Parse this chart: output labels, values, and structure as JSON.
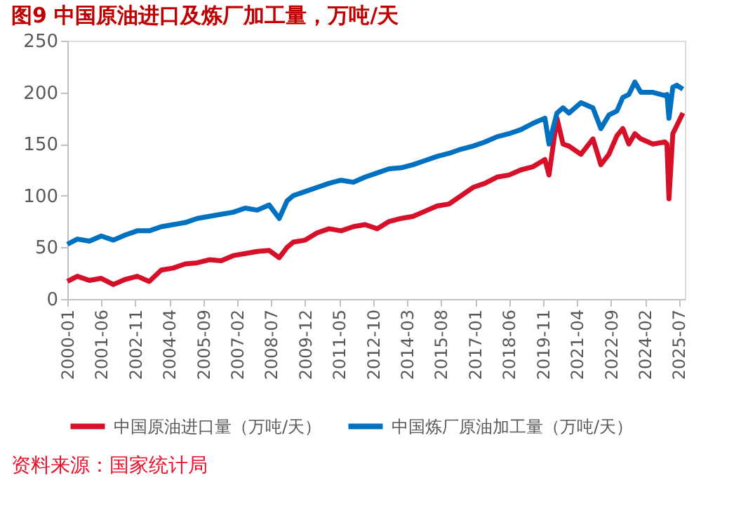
{
  "chart_data": {
    "type": "line",
    "title": "图9  中国原油进口及炼厂加工量，万吨/天",
    "x": [
      "2000-01",
      "2000-06",
      "2000-12",
      "2001-06",
      "2001-12",
      "2002-06",
      "2002-12",
      "2003-06",
      "2003-12",
      "2004-06",
      "2004-12",
      "2005-06",
      "2005-12",
      "2006-06",
      "2006-12",
      "2007-06",
      "2007-12",
      "2008-06",
      "2008-11",
      "2009-03",
      "2009-06",
      "2009-12",
      "2010-06",
      "2010-12",
      "2011-06",
      "2011-12",
      "2012-06",
      "2012-12",
      "2013-06",
      "2013-12",
      "2014-06",
      "2014-12",
      "2015-06",
      "2015-12",
      "2016-06",
      "2016-12",
      "2017-06",
      "2017-12",
      "2018-06",
      "2018-12",
      "2019-06",
      "2019-12",
      "2020-02",
      "2020-06",
      "2020-09",
      "2020-12",
      "2021-06",
      "2021-12",
      "2022-04",
      "2022-08",
      "2022-12",
      "2023-03",
      "2023-06",
      "2023-09",
      "2023-12",
      "2024-06",
      "2024-12",
      "2025-01",
      "2025-02",
      "2025-04",
      "2025-06",
      "2025-09"
    ],
    "series": [
      {
        "name": "中国原油进口量（万吨/天）",
        "color": "#d7102a",
        "values": [
          17,
          22,
          18,
          20,
          14,
          19,
          22,
          17,
          28,
          30,
          34,
          35,
          38,
          37,
          42,
          44,
          46,
          47,
          40,
          50,
          55,
          57,
          64,
          68,
          66,
          70,
          72,
          68,
          75,
          78,
          80,
          85,
          90,
          92,
          100,
          108,
          112,
          118,
          120,
          125,
          128,
          135,
          120,
          175,
          150,
          148,
          140,
          155,
          130,
          140,
          158,
          165,
          150,
          160,
          155,
          150,
          152,
          150,
          97,
          160,
          168,
          180
        ]
      },
      {
        "name": "中国炼厂原油加工量（万吨/天）",
        "color": "#0070c0",
        "values": [
          53,
          58,
          56,
          61,
          57,
          62,
          66,
          66,
          70,
          72,
          74,
          78,
          80,
          82,
          84,
          88,
          86,
          91,
          78,
          95,
          100,
          104,
          108,
          112,
          115,
          113,
          118,
          122,
          126,
          127,
          130,
          134,
          138,
          141,
          145,
          148,
          152,
          157,
          160,
          164,
          170,
          175,
          150,
          180,
          185,
          180,
          190,
          185,
          165,
          178,
          182,
          195,
          198,
          210,
          200,
          200,
          197,
          198,
          175,
          205,
          207,
          203
        ]
      }
    ],
    "xlim": [
      "2000-01",
      "2025-10"
    ],
    "xticks": [
      "2000-01",
      "2001-06",
      "2002-11",
      "2004-04",
      "2005-09",
      "2007-02",
      "2008-07",
      "2009-12",
      "2011-05",
      "2012-10",
      "2014-03",
      "2015-08",
      "2017-01",
      "2018-06",
      "2019-11",
      "2021-04",
      "2022-09",
      "2024-02",
      "2025-07"
    ],
    "ylim": [
      0,
      250
    ],
    "yticks": [
      0,
      50,
      100,
      150,
      200,
      250
    ],
    "grid": false,
    "legend": "bottom",
    "marker": "none",
    "line_style": "solid",
    "annotations": [
      "资料来源：国家统计局"
    ]
  }
}
